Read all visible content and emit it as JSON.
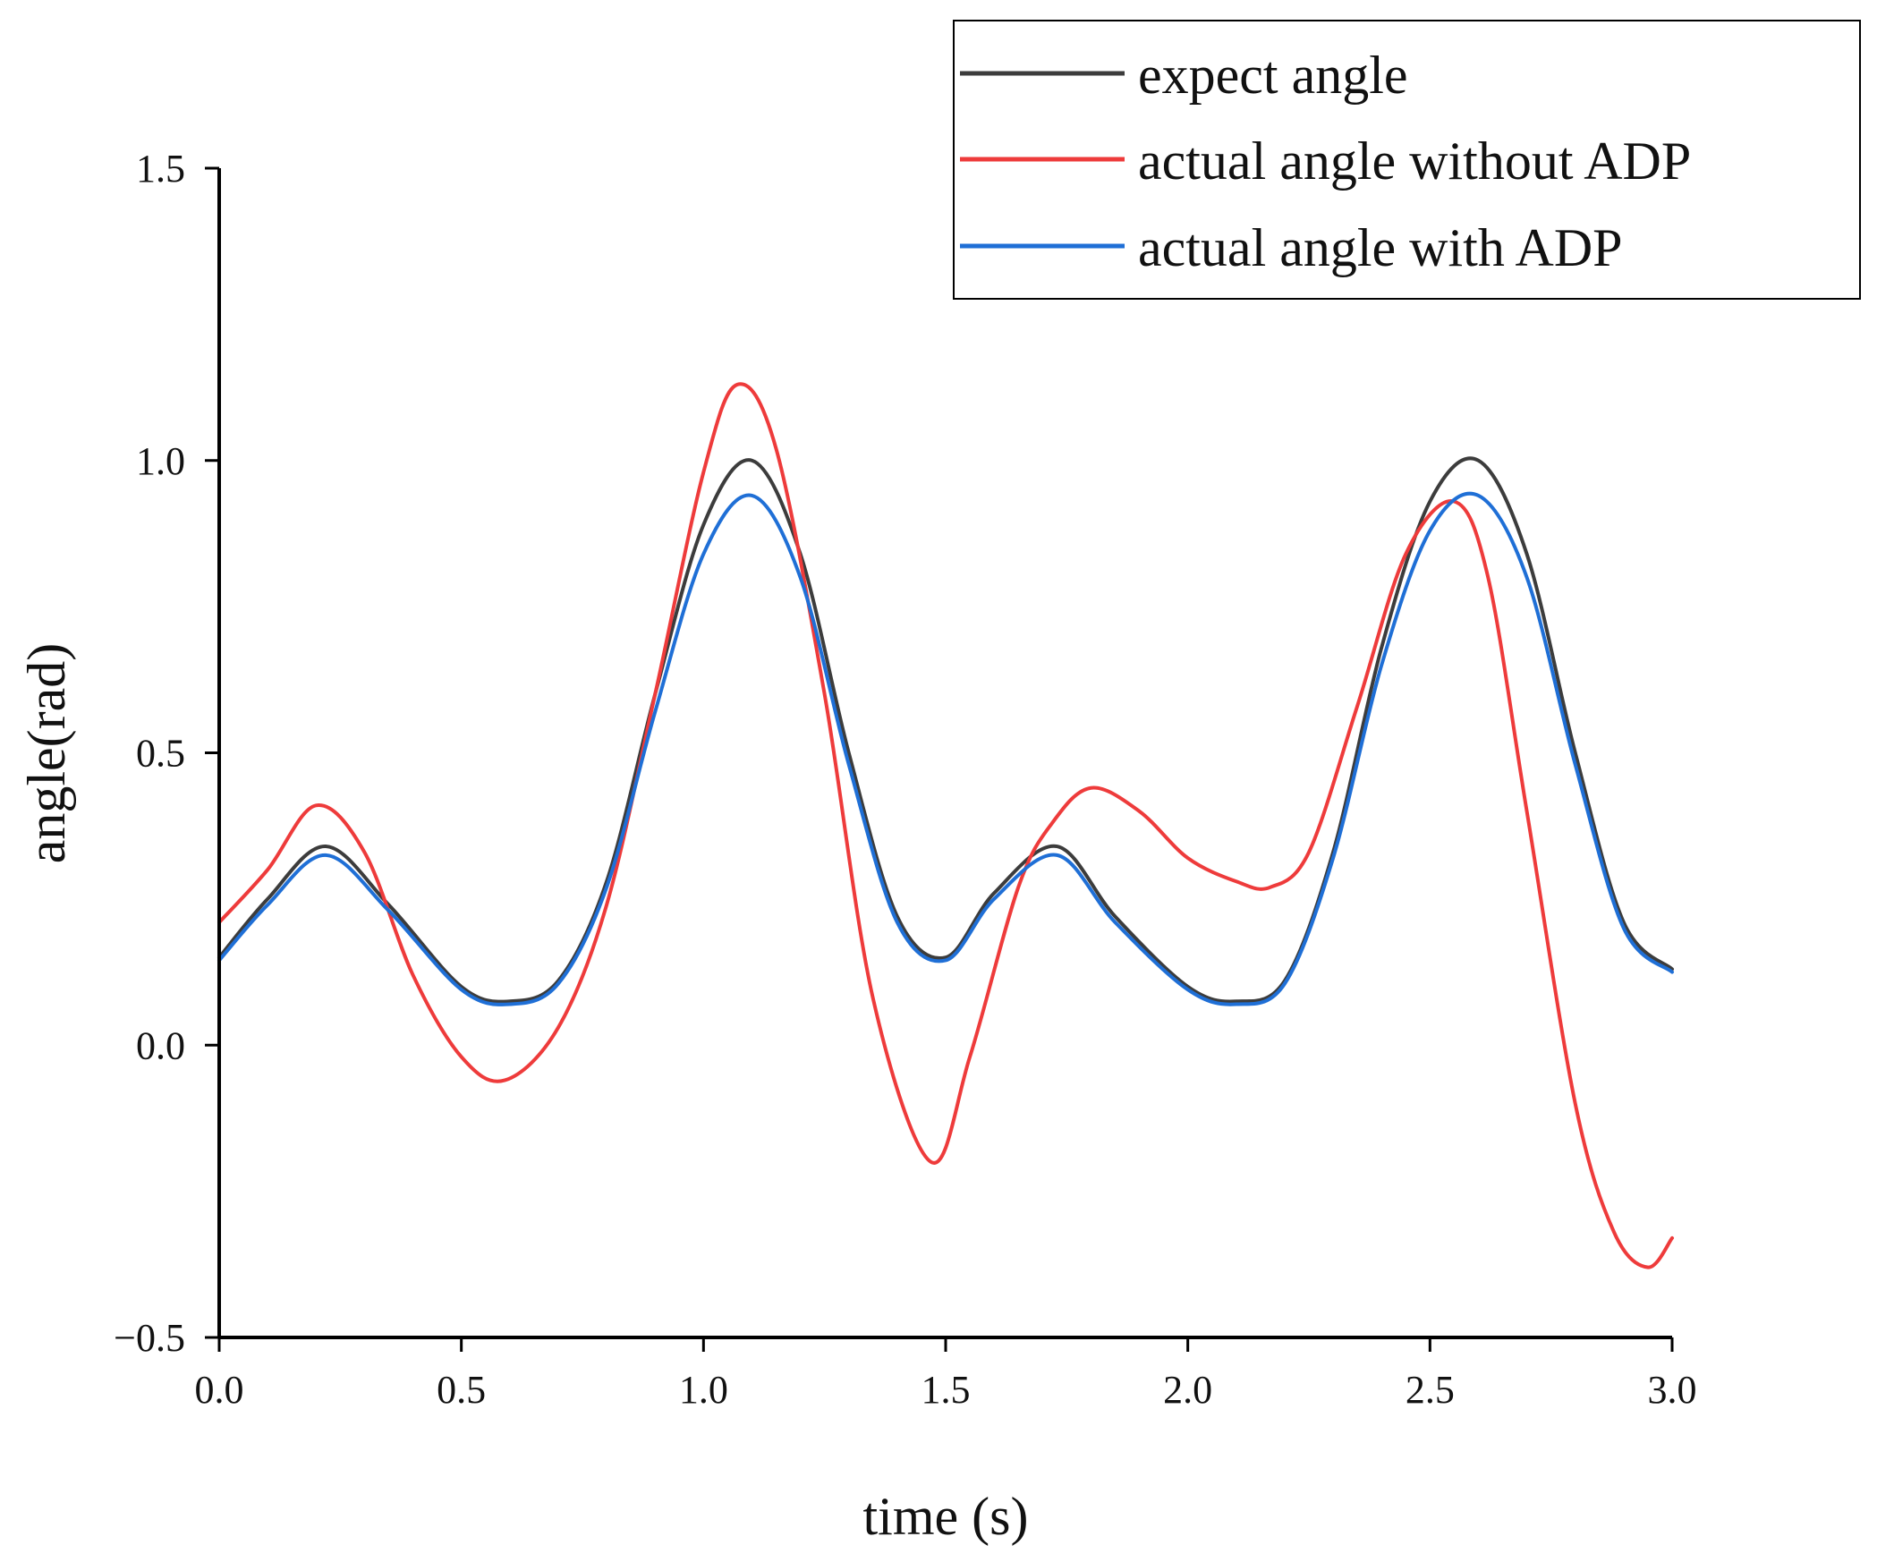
{
  "chart_data": {
    "type": "line",
    "title": "",
    "xlabel": "time (s)",
    "ylabel": "angle(rad)",
    "xlim": [
      0.0,
      3.0
    ],
    "ylim": [
      -0.5,
      1.5
    ],
    "xticks": [
      0.0,
      0.5,
      1.0,
      1.5,
      2.0,
      2.5,
      3.0
    ],
    "xtick_labels": [
      "0.0",
      "0.5",
      "1.0",
      "1.5",
      "2.0",
      "2.5",
      "3.0"
    ],
    "yticks": [
      -0.5,
      0.0,
      0.5,
      1.0,
      1.5
    ],
    "ytick_labels": [
      "−0.5",
      "0.0",
      "0.5",
      "1.0",
      "1.5"
    ],
    "grid": false,
    "legend_position": "top-right",
    "series": [
      {
        "name": "expect angle",
        "color": "#3c3c3c",
        "x": [
          0.0,
          0.1,
          0.22,
          0.35,
          0.5,
          0.6,
          0.7,
          0.8,
          0.9,
          1.0,
          1.1,
          1.2,
          1.3,
          1.4,
          1.5,
          1.6,
          1.73,
          1.85,
          2.0,
          2.1,
          2.2,
          2.3,
          2.4,
          2.5,
          2.6,
          2.7,
          2.8,
          2.9,
          3.0
        ],
        "y": [
          0.15,
          0.25,
          0.34,
          0.24,
          0.1,
          0.075,
          0.11,
          0.28,
          0.6,
          0.89,
          1.0,
          0.84,
          0.5,
          0.22,
          0.15,
          0.26,
          0.34,
          0.22,
          0.1,
          0.075,
          0.11,
          0.33,
          0.68,
          0.93,
          1.0,
          0.84,
          0.5,
          0.21,
          0.13
        ]
      },
      {
        "name": "actual angle without ADP",
        "color": "#ee3b3b",
        "x": [
          0.0,
          0.1,
          0.2,
          0.3,
          0.4,
          0.5,
          0.59,
          0.7,
          0.8,
          0.9,
          1.0,
          1.07,
          1.15,
          1.25,
          1.35,
          1.47,
          1.55,
          1.65,
          1.72,
          1.8,
          1.9,
          2.0,
          2.1,
          2.17,
          2.25,
          2.35,
          2.45,
          2.55,
          2.62,
          2.7,
          2.8,
          2.88,
          2.95,
          3.0
        ],
        "y": [
          0.21,
          0.3,
          0.41,
          0.33,
          0.12,
          -0.02,
          -0.06,
          0.03,
          0.24,
          0.6,
          0.98,
          1.13,
          1.02,
          0.6,
          0.08,
          -0.2,
          -0.02,
          0.27,
          0.38,
          0.44,
          0.4,
          0.32,
          0.28,
          0.27,
          0.33,
          0.58,
          0.84,
          0.93,
          0.8,
          0.4,
          -0.1,
          -0.32,
          -0.38,
          -0.33
        ]
      },
      {
        "name": "actual angle with ADP",
        "color": "#1f6fd6",
        "x": [
          0.0,
          0.1,
          0.22,
          0.35,
          0.5,
          0.6,
          0.7,
          0.8,
          0.9,
          1.0,
          1.1,
          1.2,
          1.3,
          1.4,
          1.5,
          1.6,
          1.73,
          1.85,
          2.0,
          2.1,
          2.2,
          2.3,
          2.4,
          2.5,
          2.6,
          2.7,
          2.8,
          2.9,
          3.0
        ],
        "y": [
          0.145,
          0.24,
          0.325,
          0.23,
          0.095,
          0.07,
          0.105,
          0.27,
          0.57,
          0.84,
          0.94,
          0.8,
          0.48,
          0.21,
          0.145,
          0.25,
          0.325,
          0.21,
          0.095,
          0.07,
          0.105,
          0.32,
          0.65,
          0.88,
          0.94,
          0.8,
          0.48,
          0.2,
          0.125
        ]
      }
    ]
  }
}
